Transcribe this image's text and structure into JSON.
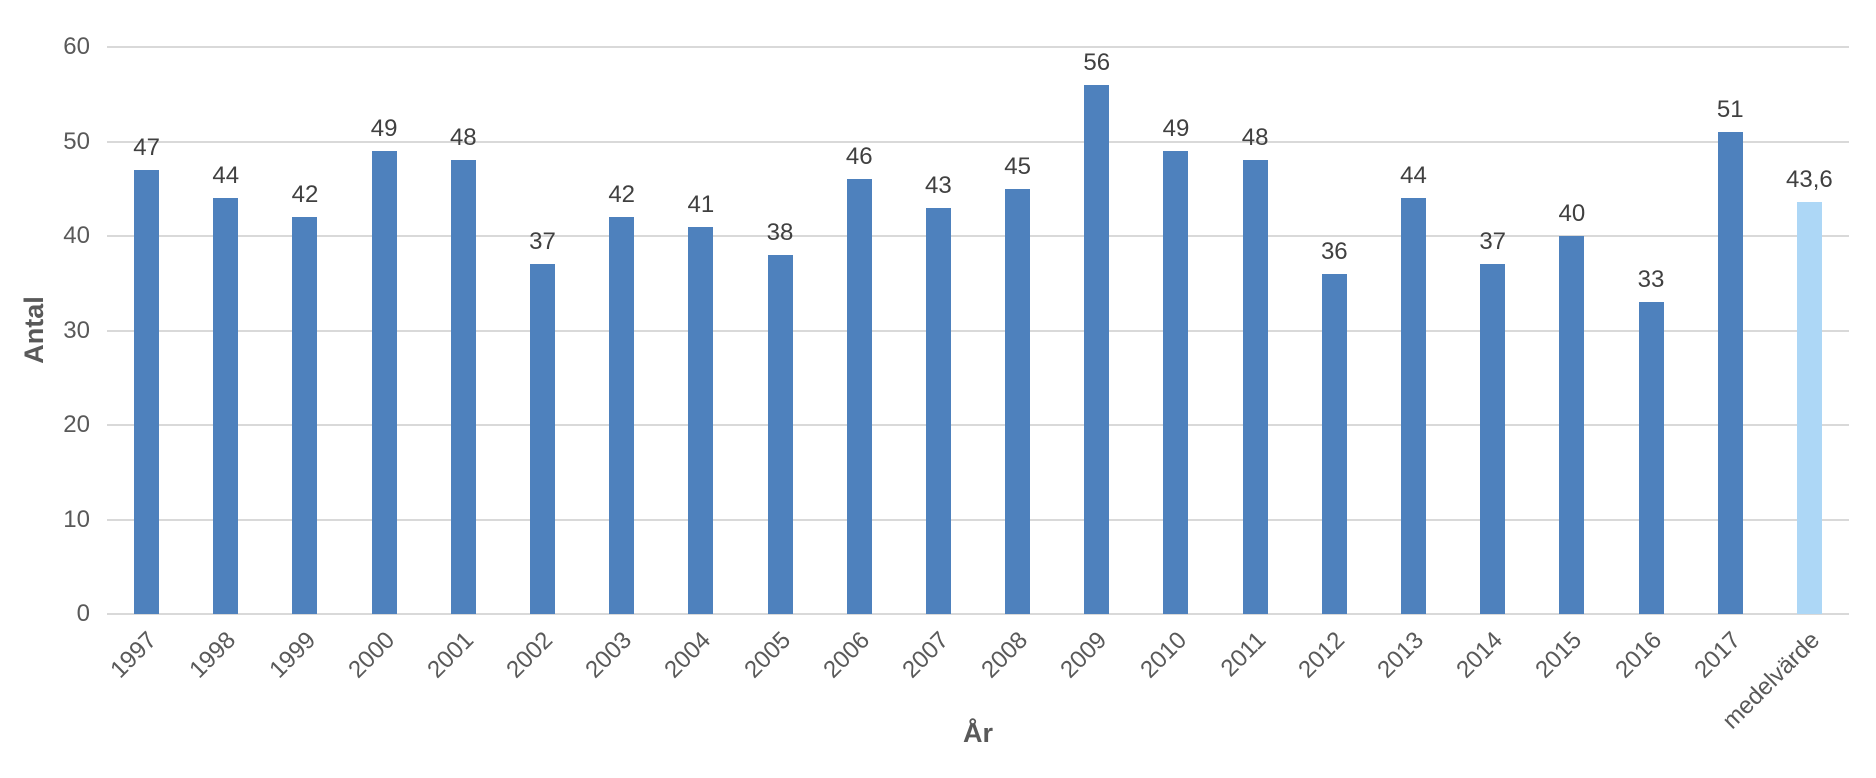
{
  "chart_data": {
    "type": "bar",
    "title": "",
    "xlabel": "År",
    "ylabel": "Antal",
    "categories": [
      "1997",
      "1998",
      "1999",
      "2000",
      "2001",
      "2002",
      "2003",
      "2004",
      "2005",
      "2006",
      "2007",
      "2008",
      "2009",
      "2010",
      "2011",
      "2012",
      "2013",
      "2014",
      "2015",
      "2016",
      "2017",
      "medelvärde"
    ],
    "values": [
      47,
      44,
      42,
      49,
      48,
      37,
      42,
      41,
      38,
      46,
      43,
      45,
      56,
      49,
      48,
      36,
      44,
      37,
      40,
      33,
      51,
      43.6
    ],
    "value_labels": [
      "47",
      "44",
      "42",
      "49",
      "48",
      "37",
      "42",
      "41",
      "38",
      "46",
      "43",
      "45",
      "56",
      "49",
      "48",
      "36",
      "44",
      "37",
      "40",
      "33",
      "51",
      "43,6"
    ],
    "highlight_index": 21,
    "ylim": [
      0,
      60
    ],
    "yticks": [
      0,
      10,
      20,
      30,
      40,
      50,
      60
    ],
    "grid": true,
    "legend": "none",
    "colors": {
      "bar_default": "#4e81bd",
      "bar_highlight": "#add7f6",
      "gridline": "#d9d9d9",
      "axis_text": "#595959",
      "data_label_text": "#404040"
    }
  }
}
